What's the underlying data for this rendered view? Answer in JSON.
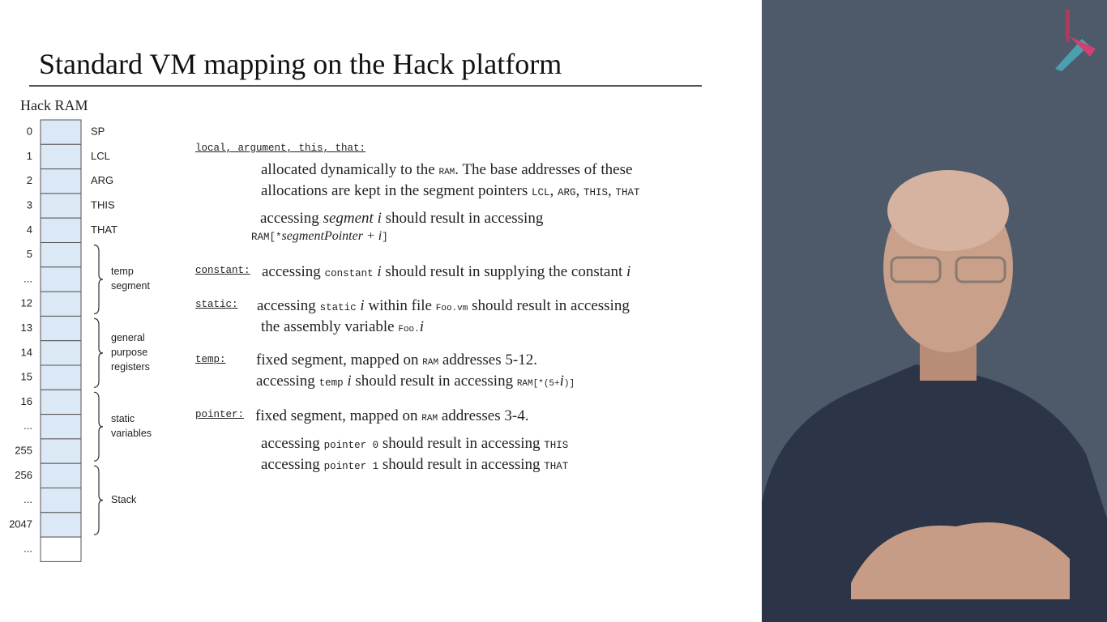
{
  "title": "Standard VM mapping on the Hack platform",
  "ram": {
    "title": "Hack RAM",
    "addresses": [
      "0",
      "1",
      "2",
      "3",
      "4",
      "5",
      "...",
      "12",
      "13",
      "14",
      "15",
      "16",
      "...",
      "255",
      "256",
      "...",
      "2047",
      "..."
    ],
    "pointer_labels": [
      "SP",
      "LCL",
      "ARG",
      "THIS",
      "THAT"
    ],
    "groups": [
      [
        "temp",
        "segment"
      ],
      [
        "general",
        "purpose",
        "registers"
      ],
      [
        "static",
        "variables"
      ],
      [
        "Stack"
      ]
    ]
  },
  "sections": [
    {
      "name": "local, argument, this, that:",
      "lines": [
        [
          "allocated dynamically to the ",
          "RAM",
          ". The base addresses of these"
        ],
        [
          "allocations are kept in the segment pointers ",
          "LCL",
          ", ",
          "ARG",
          ", ",
          "THIS",
          ", ",
          "THAT"
        ],
        [
          "accessing ",
          "segment i",
          " should result in accessing"
        ],
        [
          "RAM[*",
          "segmentPointer + i",
          "]"
        ]
      ]
    },
    {
      "name": "constant:",
      "lines": [
        [
          "accessing ",
          "constant",
          " i",
          " should result in supplying the constant ",
          "i"
        ]
      ]
    },
    {
      "name": "static:",
      "lines": [
        [
          "accessing ",
          "static",
          " i",
          " within file ",
          "Foo.vm",
          " should result in accessing"
        ],
        [
          "the assembly variable ",
          "Foo.",
          "i"
        ]
      ]
    },
    {
      "name": "temp:",
      "lines": [
        [
          "fixed segment, mapped on ",
          "RAM",
          " addresses 5-12."
        ],
        [
          "accessing ",
          "temp",
          " i",
          " should result in accessing ",
          "RAM[*(5+",
          "i",
          ")]"
        ]
      ]
    },
    {
      "name": "pointer:",
      "lines": [
        [
          "fixed segment, mapped on ",
          "RAM",
          " addresses 3-4."
        ],
        [
          "accessing ",
          "pointer 0",
          " should result in accessing ",
          "THIS"
        ],
        [
          "accessing ",
          "pointer 1",
          " should result in accessing ",
          "THAT"
        ]
      ]
    }
  ]
}
